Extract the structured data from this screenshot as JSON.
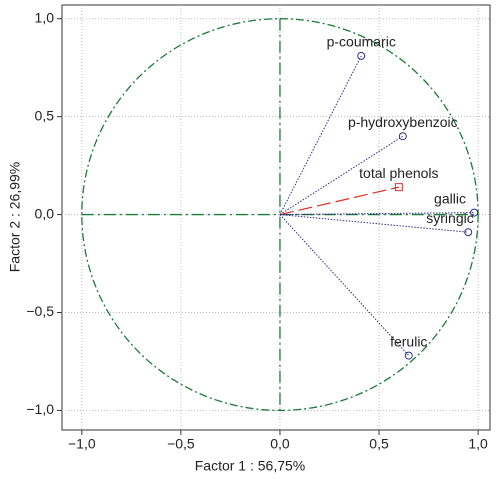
{
  "chart_data": {
    "type": "scatter",
    "xlabel": "Factor 1 : 56,75%",
    "ylabel": "Factor 2 : 26,99%",
    "labels": [
      "p-coumaric",
      "p-hydroxybenzoic",
      "total phenols",
      "gallic",
      "syringic",
      "ferulic"
    ],
    "x": [
      0.41,
      0.62,
      0.6,
      0.98,
      0.95,
      0.65
    ],
    "y": [
      0.81,
      0.4,
      0.14,
      0.01,
      -0.09,
      -0.72
    ],
    "colors": [
      "#2b2f8f",
      "#2b2f8f",
      "#e0302a",
      "#2b2f8f",
      "#2b2f8f",
      "#2b2f8f"
    ],
    "markers": [
      "circle",
      "circle",
      "square",
      "circle",
      "circle",
      "circle"
    ],
    "xlim": [
      -1.1,
      1.06
    ],
    "ylim": [
      -1.1,
      1.07
    ],
    "xticks": [
      {
        "value": -1,
        "label": "−1,0"
      },
      {
        "value": -0.5,
        "label": "−0,5"
      },
      {
        "value": 0,
        "label": "0,0"
      },
      {
        "value": 0.5,
        "label": "0,5"
      },
      {
        "value": 1,
        "label": "1,0"
      }
    ],
    "yticks": [
      {
        "value": -1,
        "label": "−1,0"
      },
      {
        "value": -0.5,
        "label": "−0,5"
      },
      {
        "value": 0,
        "label": "0,0"
      },
      {
        "value": 0.5,
        "label": "0,5"
      },
      {
        "value": 1,
        "label": "1,0"
      }
    ],
    "grid": true,
    "circle_color": "#1f7a3a"
  }
}
